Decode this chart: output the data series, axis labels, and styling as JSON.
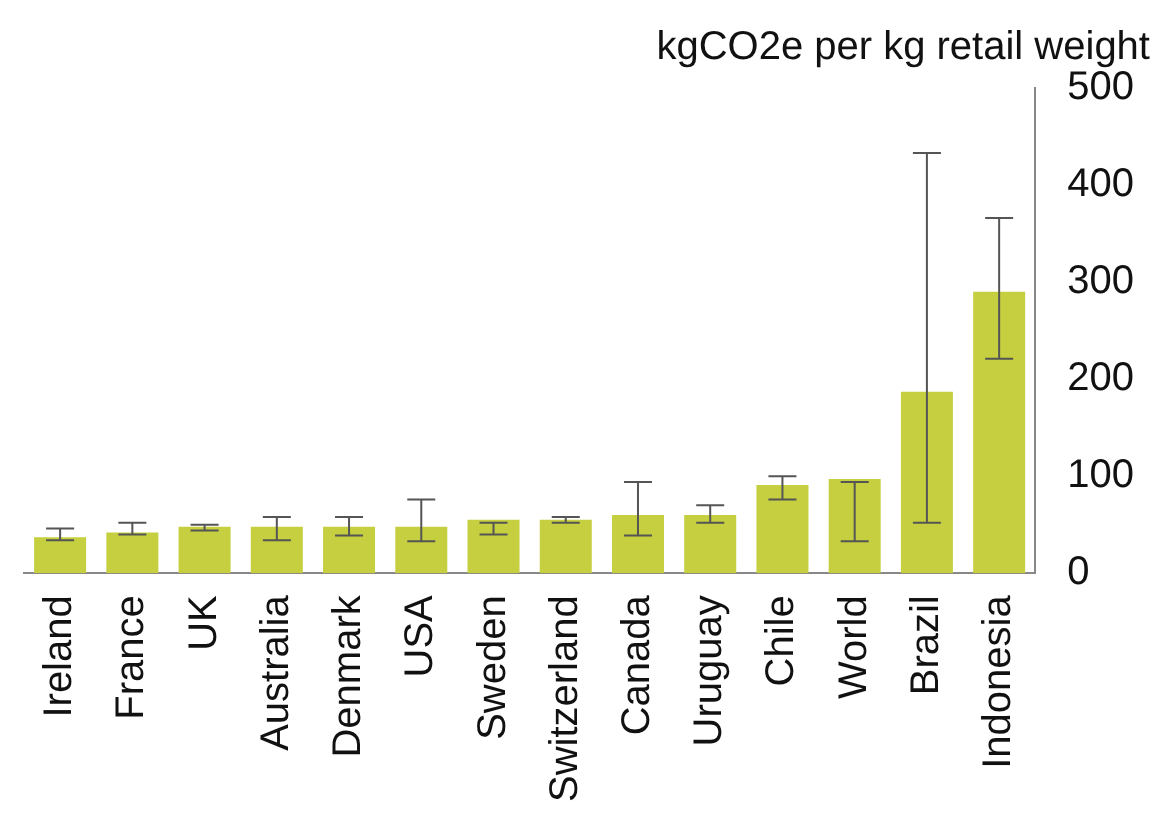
{
  "chart_data": {
    "type": "bar",
    "title": "kgCO2e per kg retail weight",
    "categories": [
      "Ireland",
      "France",
      "UK",
      "Australia",
      "Denmark",
      "USA",
      "Sweden",
      "Switzerland",
      "Canada",
      "Uruguay",
      "Chile",
      "World",
      "Brazil",
      "Indonesia"
    ],
    "values": [
      37,
      42,
      48,
      48,
      48,
      48,
      55,
      55,
      60,
      60,
      91,
      97,
      187,
      290
    ],
    "errors": [
      [
        34,
        46
      ],
      [
        40,
        52
      ],
      [
        44,
        50
      ],
      [
        34,
        58
      ],
      [
        39,
        58
      ],
      [
        33,
        76
      ],
      [
        40,
        52
      ],
      [
        52,
        58
      ],
      [
        39,
        94
      ],
      [
        52,
        70
      ],
      [
        76,
        100
      ],
      [
        33,
        94
      ],
      [
        52,
        433
      ],
      [
        221,
        366
      ]
    ],
    "color": "#c5cf3f",
    "ylim": [
      0,
      500
    ],
    "yticks": [
      0,
      100,
      200,
      300,
      400,
      500
    ],
    "grid": false,
    "legend": false
  }
}
